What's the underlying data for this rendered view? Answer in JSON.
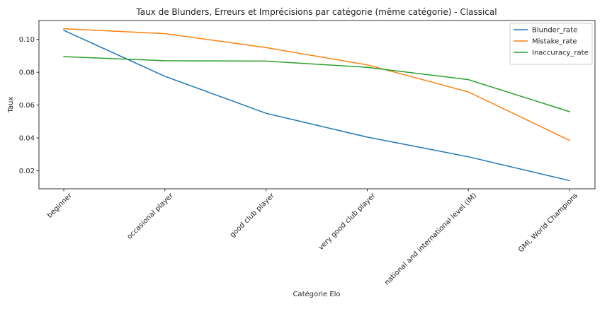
{
  "chart_data": {
    "type": "line",
    "title": "Taux de Blunders, Erreurs et Imprécisions par catégorie (même catégorie) - Classical",
    "xlabel": "Catégorie Elo",
    "ylabel": "Taux",
    "categories": [
      "beginner",
      "occasional player",
      "good club player",
      "very good club player",
      "national and international level (IM)",
      "GMI, World Champions"
    ],
    "ylim": [
      0.009,
      0.1115
    ],
    "yticks": [
      0.02,
      0.04,
      0.06,
      0.08,
      0.1
    ],
    "ytick_labels": [
      "0.02",
      "0.04",
      "0.06",
      "0.08",
      "0.10"
    ],
    "grid": false,
    "legend_position": "top-right",
    "series": [
      {
        "name": "Blunder_rate",
        "color": "#1f77b4",
        "values": [
          0.1055,
          0.0775,
          0.055,
          0.0405,
          0.0285,
          0.014
        ]
      },
      {
        "name": "Mistake_rate",
        "color": "#ff7f0e",
        "values": [
          0.1065,
          0.1035,
          0.095,
          0.0845,
          0.068,
          0.0385
        ]
      },
      {
        "name": "Inaccuracy_rate",
        "color": "#2ca02c",
        "values": [
          0.0895,
          0.087,
          0.0868,
          0.083,
          0.0755,
          0.056
        ]
      }
    ]
  }
}
